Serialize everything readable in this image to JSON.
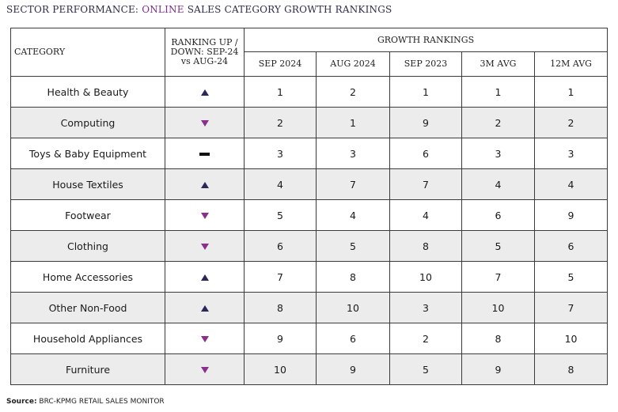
{
  "title": {
    "part1": "SECTOR PERFORMANCE: ",
    "part2": "ONLINE",
    "part3": " SALES CATEGORY GROWTH RANKINGS"
  },
  "headers": {
    "category": "CATEGORY",
    "ranking": "RANKING UP / DOWN: SEP-24 vs AUG-24",
    "group": "GROWTH RANKINGS",
    "columns": [
      "SEP 2024",
      "AUG 2024",
      "SEP 2023",
      "3M AVG",
      "12M AVG"
    ]
  },
  "source": {
    "label": "Source:",
    "text": " BRC-KPMG RETAIL SALES MONITOR"
  },
  "colors": {
    "up": "#2b2859",
    "down": "#8b2e8f",
    "shade": "#ececec",
    "accent": "#7b2e8a"
  },
  "chart_data": {
    "type": "table",
    "columns": [
      "CATEGORY",
      "RANKING UP / DOWN: SEP-24 vs AUG-24",
      "SEP 2024",
      "AUG 2024",
      "SEP 2023",
      "3M AVG",
      "12M AVG"
    ],
    "rows": [
      {
        "category": "Health & Beauty",
        "trend": "up",
        "values": [
          "1",
          "2",
          "1",
          "1",
          "1"
        ]
      },
      {
        "category": "Computing",
        "trend": "down",
        "values": [
          "2",
          "1",
          "9",
          "2",
          "2"
        ]
      },
      {
        "category": "Toys & Baby Equipment",
        "trend": "same",
        "values": [
          "3",
          "3",
          "6",
          "3",
          "3"
        ]
      },
      {
        "category": "House Textiles",
        "trend": "up",
        "values": [
          "4",
          "7",
          "7",
          "4",
          "4"
        ]
      },
      {
        "category": "Footwear",
        "trend": "down",
        "values": [
          "5",
          "4",
          "4",
          "6",
          "9"
        ]
      },
      {
        "category": "Clothing",
        "trend": "down",
        "values": [
          "6",
          "5",
          "8",
          "5",
          "6"
        ]
      },
      {
        "category": "Home Accessories",
        "trend": "up",
        "values": [
          "7",
          "8",
          "10",
          "7",
          "5"
        ]
      },
      {
        "category": "Other Non-Food",
        "trend": "up",
        "values": [
          "8",
          "10",
          "3",
          "10",
          "7"
        ]
      },
      {
        "category": "Household Appliances",
        "trend": "down",
        "values": [
          "9",
          "6",
          "2",
          "8",
          "10"
        ]
      },
      {
        "category": "Furniture",
        "trend": "down",
        "values": [
          "10",
          "9",
          "5",
          "9",
          "8"
        ]
      }
    ]
  }
}
